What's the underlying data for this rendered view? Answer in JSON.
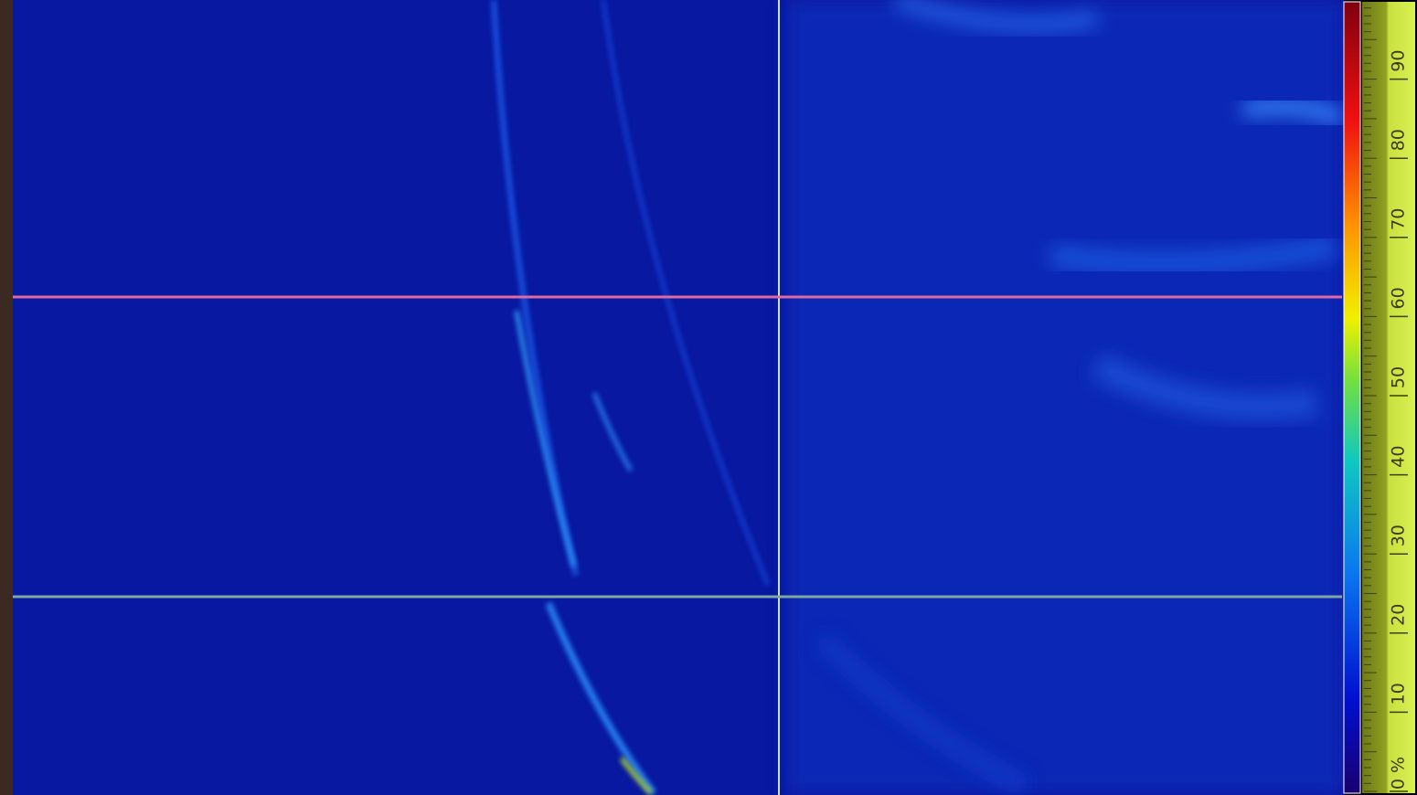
{
  "color_scale": {
    "labels": [
      "0 %",
      "10",
      "20",
      "30",
      "40",
      "50",
      "60",
      "70",
      "80",
      "90"
    ]
  }
}
